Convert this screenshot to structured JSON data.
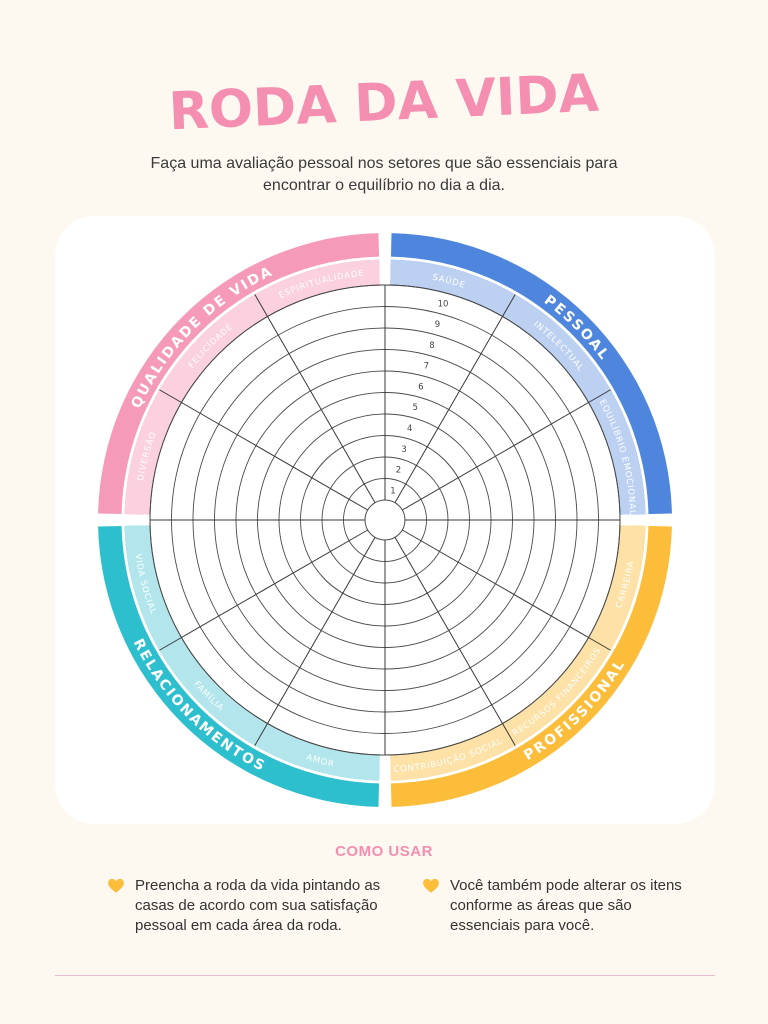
{
  "title": "RODA DA VIDA",
  "subtitle": "Faça uma avaliação pessoal nos setores que são essenciais para encontrar o equilíbrio no dia a dia.",
  "wheel": {
    "quadrants": [
      {
        "name": "PESSOAL",
        "color": "#4f86dd",
        "light": "#bcd0f2"
      },
      {
        "name": "PROFISSIONAL",
        "color": "#fcbd3b",
        "light": "#fde1a6"
      },
      {
        "name": "RELACIONAMENTOS",
        "color": "#2ebfcf",
        "light": "#b2e6ec"
      },
      {
        "name": "QUALIDADE DE VIDA",
        "color": "#f69ab9",
        "light": "#fbd0df"
      }
    ],
    "sectors": [
      {
        "label": "SAÚDE",
        "quadrant": 0
      },
      {
        "label": "INTELECTUAL",
        "quadrant": 0
      },
      {
        "label": "EQUILÍBRIO EMOCIONAL",
        "quadrant": 0
      },
      {
        "label": "CARREIRA",
        "quadrant": 1
      },
      {
        "label": "RECURSOS FINANCEIROS",
        "quadrant": 1
      },
      {
        "label": "CONTRIBUIÇÃO SOCIAL",
        "quadrant": 1
      },
      {
        "label": "AMOR",
        "quadrant": 2
      },
      {
        "label": "FAMÍLIA",
        "quadrant": 2
      },
      {
        "label": "VIDA SOCIAL",
        "quadrant": 2
      },
      {
        "label": "DIVERSÃO",
        "quadrant": 3
      },
      {
        "label": "FELICIDADE",
        "quadrant": 3
      },
      {
        "label": "ESPIRITUALIDADE",
        "quadrant": 3
      }
    ],
    "scale": [
      "1",
      "2",
      "3",
      "4",
      "5",
      "6",
      "7",
      "8",
      "9",
      "10"
    ]
  },
  "how_to": {
    "title": "COMO USAR",
    "tips": [
      "Preencha a roda da vida pintando as casas de acordo com sua satisfação pessoal em cada área da roda.",
      "Você também pode alterar os itens conforme as áreas que são essenciais para você."
    ],
    "heart_color": "#fcbd3b"
  }
}
